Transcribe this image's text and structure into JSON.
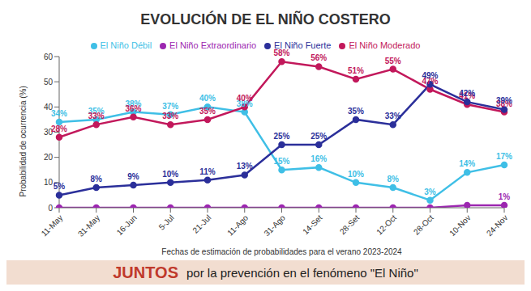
{
  "chart_data": {
    "type": "line",
    "title": "EVOLUCIÓN DE EL NIÑO COSTERO",
    "x_label": "Fechas de estimación de probabilidades para el verano 2023-2024",
    "y_label": "Probabilidad de ocurrencia (%)",
    "categories": [
      "11-May",
      "31-May",
      "16-Jun",
      "5-Jul",
      "21-Jul",
      "11-Ago",
      "31-Ago",
      "14-Set",
      "28-Set",
      "12-Oct",
      "28-Oct",
      "10-Nov",
      "24-Nov"
    ],
    "series": [
      {
        "name": "El Niño Débil",
        "color": "#3fbfe6",
        "marker": "circle",
        "line_style": "solid",
        "values": [
          34,
          35,
          38,
          37,
          40,
          38,
          15,
          16,
          10,
          8,
          3,
          14,
          17
        ],
        "value_labels": [
          "34%",
          "35%",
          "38%",
          "37%",
          "40%",
          "38%",
          "15%",
          "16%",
          "10%",
          "8%",
          "3%",
          "14%",
          "17%"
        ]
      },
      {
        "name": "El Niño Moderado",
        "color": "#c2185b",
        "marker": "circle",
        "line_style": "solid",
        "values": [
          28,
          33,
          36,
          33,
          35,
          40,
          58,
          56,
          51,
          55,
          47,
          41,
          38
        ],
        "value_labels": [
          "28%",
          "33%",
          "36%",
          "33%",
          "35%",
          "40%",
          "58%",
          "56%",
          "51%",
          "55%",
          "47%",
          "41%",
          "38%"
        ]
      },
      {
        "name": "El Niño Fuerte",
        "color": "#2b2f9a",
        "marker": "circle",
        "line_style": "solid",
        "values": [
          5,
          8,
          9,
          10,
          11,
          13,
          25,
          25,
          35,
          33,
          49,
          42,
          39
        ],
        "value_labels": [
          "5%",
          "8%",
          "9%",
          "10%",
          "11%",
          "13%",
          "25%",
          "25%",
          "35%",
          "33%",
          "49%",
          "42%",
          "39%"
        ]
      },
      {
        "name": "El Niño Extraordinario",
        "color": "#9c27b0",
        "marker": "circle",
        "line_style": "solid",
        "values": [
          0,
          0,
          0,
          0,
          0,
          0,
          0,
          0,
          0,
          0,
          0,
          1,
          1
        ],
        "value_labels": [
          null,
          null,
          null,
          null,
          null,
          null,
          null,
          null,
          null,
          null,
          null,
          null,
          "1%"
        ]
      }
    ],
    "ylim": [
      0,
      60
    ],
    "yticks": [
      0,
      10,
      20,
      30,
      40,
      50,
      60
    ],
    "grid": false,
    "legend": "top",
    "data_labels": true,
    "annotations": [
      "JUNTOS",
      "por la prevención en el fenómeno \"El Niño\""
    ]
  }
}
